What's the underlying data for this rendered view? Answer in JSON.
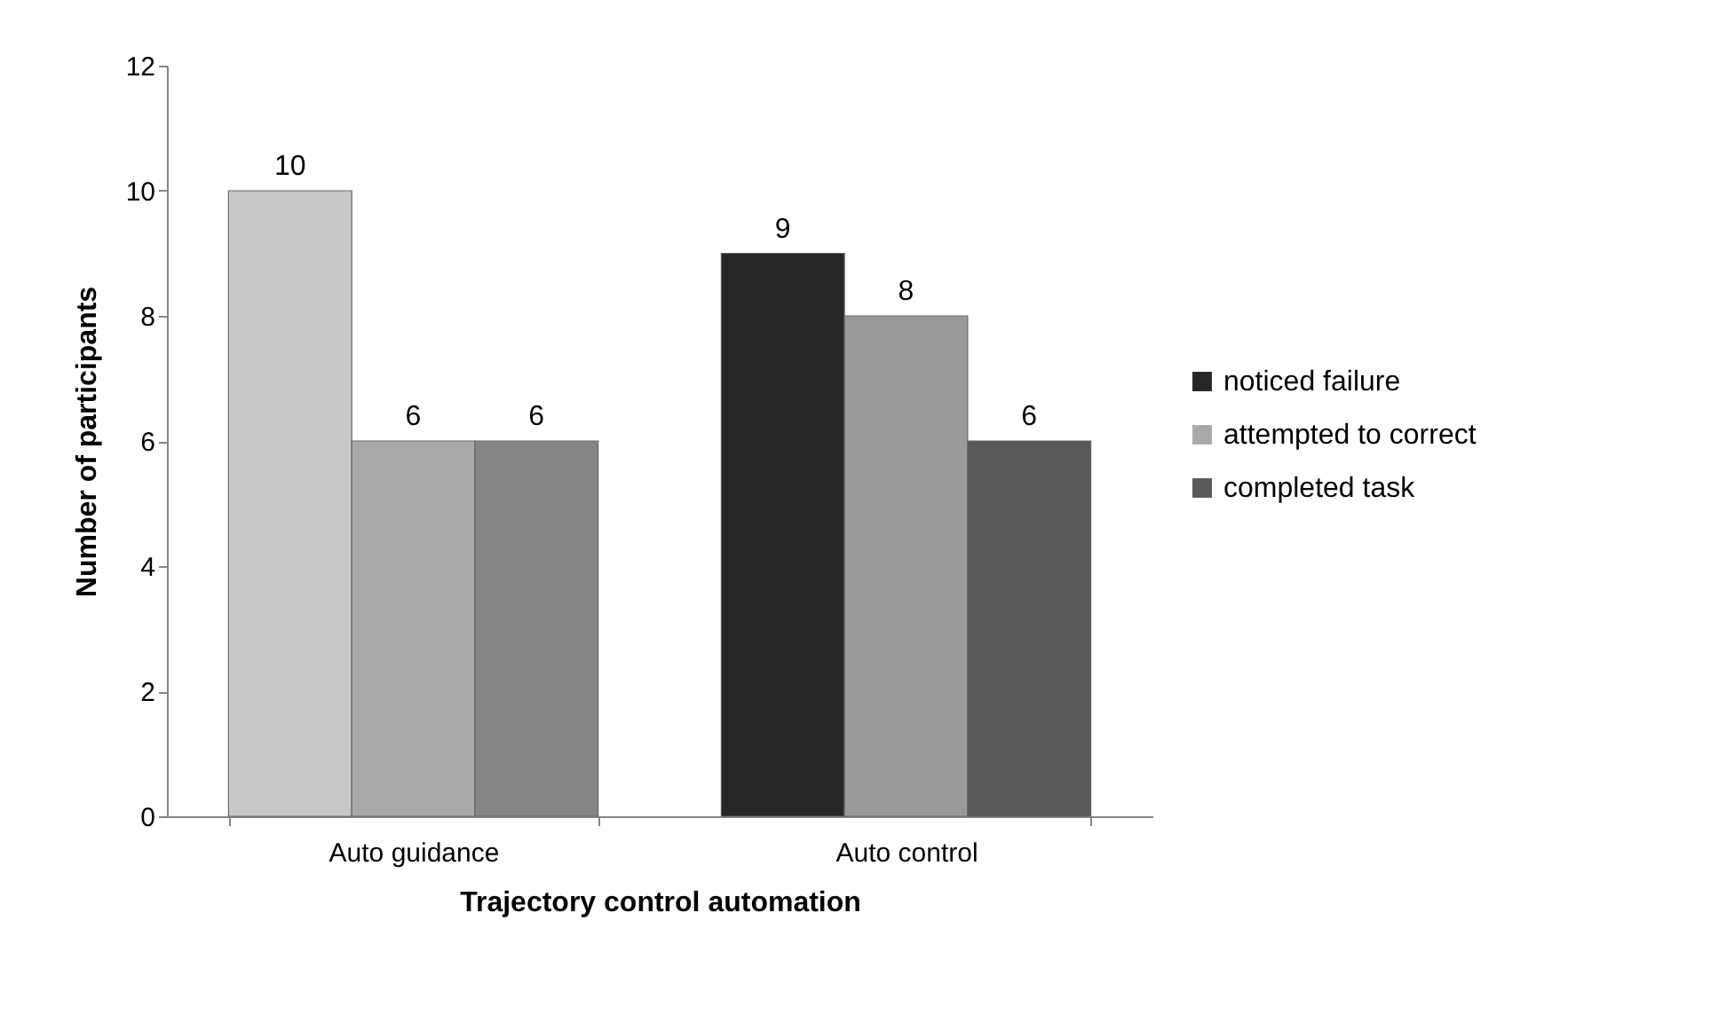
{
  "chart_data": {
    "type": "bar",
    "xlabel": "Trajectory control automation",
    "ylabel": "Number of participants",
    "categories": [
      "Auto guidance",
      "Auto control"
    ],
    "series": [
      {
        "name": "noticed failure",
        "color": "#262626",
        "colors": [
          "#c8c8c8",
          "#262626"
        ],
        "values": [
          10,
          9
        ]
      },
      {
        "name": "attempted to correct",
        "color": "#a8a8a8",
        "colors": [
          "#a8a8a8",
          "#9a9a9a"
        ],
        "values": [
          6,
          8
        ]
      },
      {
        "name": "completed task",
        "color": "#595959",
        "colors": [
          "#858585",
          "#595959"
        ],
        "values": [
          6,
          6
        ]
      }
    ],
    "ylim": [
      0,
      12
    ],
    "yticks": [
      0,
      2,
      4,
      6,
      8,
      10,
      12
    ],
    "data_labels": true,
    "grid": false,
    "legend": "right"
  }
}
